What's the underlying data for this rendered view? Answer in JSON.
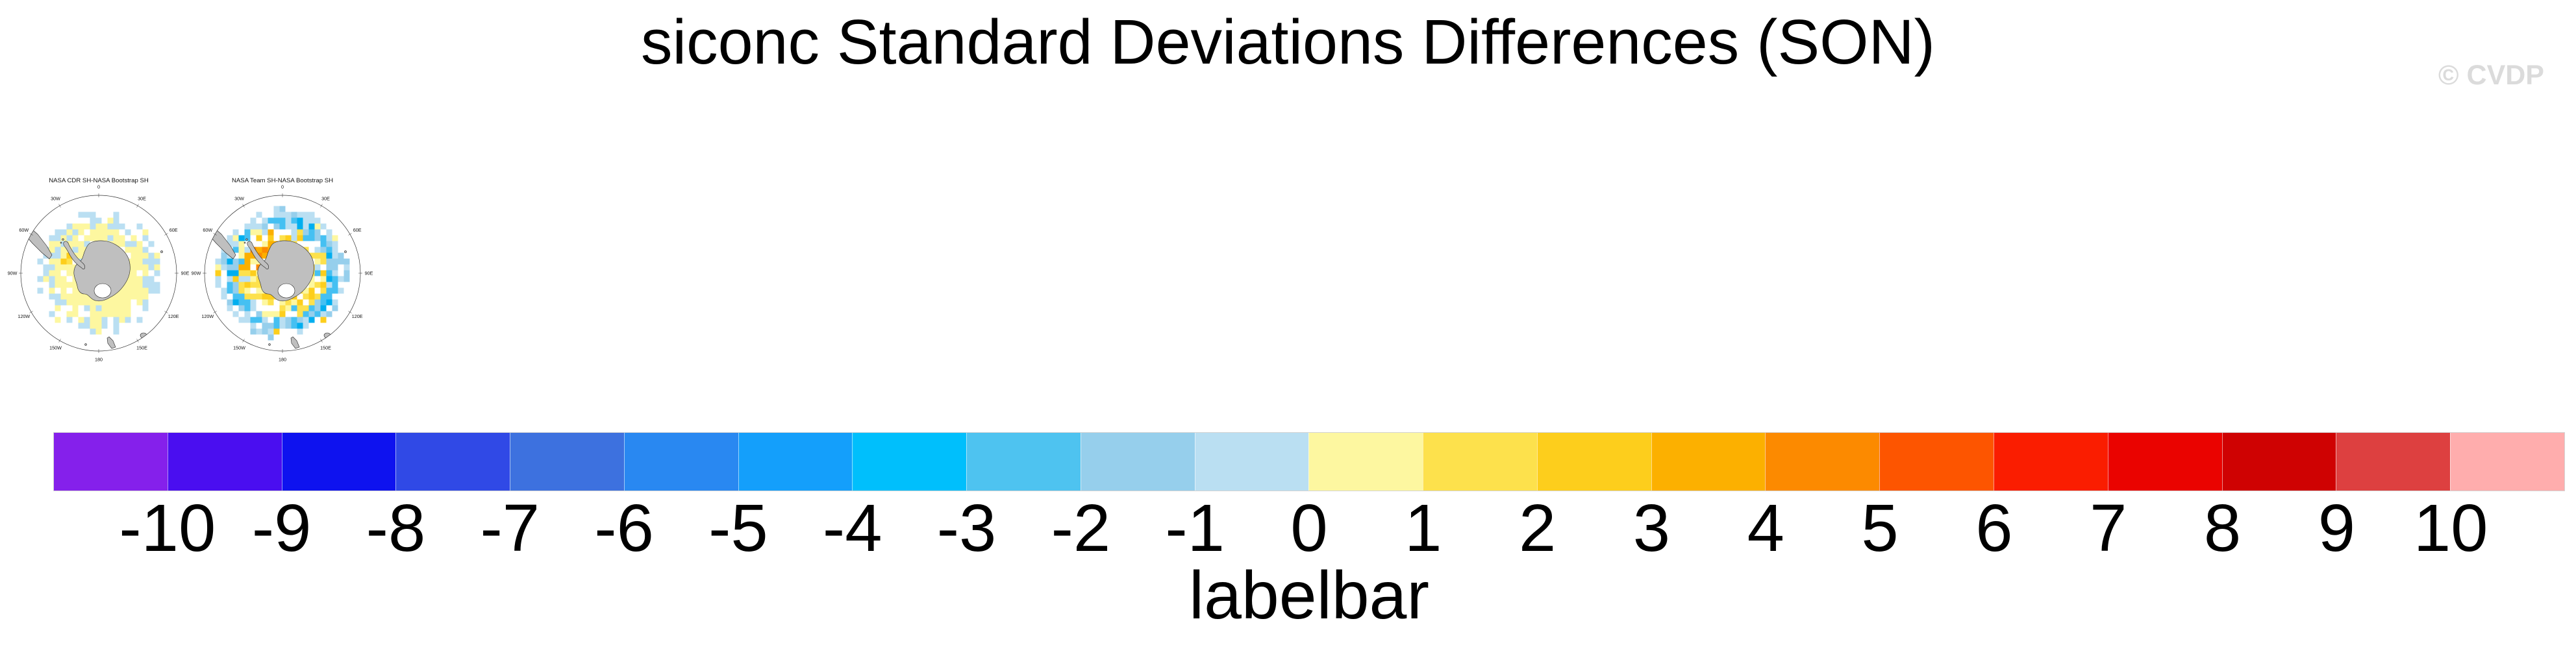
{
  "header": {
    "title": "siconc Standard Deviations Differences (SON)",
    "watermark": "© CVDP"
  },
  "maps": {
    "lon_labels": [
      "0",
      "30E",
      "60E",
      "90E",
      "120E",
      "150E",
      "180",
      "150W",
      "120W",
      "90W",
      "60W",
      "30W"
    ],
    "palette": {
      "paleYellow": "#FDF7A0",
      "yellow": "#FDE14C",
      "gold": "#FDCE1C",
      "amber": "#FCB000",
      "orange": "#FC8A00",
      "lightBlue": "#BADFF2",
      "sky": "#96CFEC",
      "azure": "#45C0F2",
      "deep": "#00AEEF"
    },
    "panels": [
      {
        "title": "NASA CDR SH-NASA Bootstrap SH",
        "seed": 7,
        "zones": [
          {
            "r0": 0.24,
            "r1": 0.56,
            "weights": {
              "paleYellow": 0.88,
              "lightBlue": 0.05
            }
          },
          {
            "r0": 0.56,
            "r1": 0.68,
            "weights": {
              "paleYellow": 0.55,
              "lightBlue": 0.33
            }
          },
          {
            "r0": 0.68,
            "r1": 0.8,
            "weights": {
              "lightBlue": 0.42,
              "paleYellow": 0.1
            }
          }
        ],
        "hotspot": null,
        "accents": [
          {
            "i": -5,
            "j": -3,
            "color": "gold"
          },
          {
            "i": -6,
            "j": -2,
            "color": "gold"
          },
          {
            "i": -5,
            "j": -2,
            "color": "yellow"
          }
        ]
      },
      {
        "title": "NASA Team SH-NASA Bootstrap SH",
        "seed": 13,
        "zones": [
          {
            "r0": 0.24,
            "r1": 0.44,
            "weights": {
              "yellow": 0.42,
              "gold": 0.22,
              "paleYellow": 0.22
            }
          },
          {
            "r0": 0.44,
            "r1": 0.58,
            "weights": {
              "yellow": 0.25,
              "gold": 0.15,
              "paleYellow": 0.15,
              "lightBlue": 0.12,
              "azure": 0.08
            }
          },
          {
            "r0": 0.58,
            "r1": 0.72,
            "weights": {
              "azure": 0.3,
              "deep": 0.12,
              "sky": 0.22,
              "lightBlue": 0.22,
              "paleYellow": 0.05,
              "gold": 0.04
            }
          },
          {
            "r0": 0.72,
            "r1": 0.84,
            "weights": {
              "lightBlue": 0.4,
              "sky": 0.12,
              "gold": 0.05,
              "paleYellow": 0.05
            }
          }
        ],
        "hotspot": {
          "r0": 0.3,
          "r1": 0.55,
          "quadrant": "NW",
          "prob": 0.55,
          "weights": {
            "amber": 0.5,
            "orange": 0.3,
            "gold": 0.2
          }
        },
        "accents": [
          {
            "i": -3,
            "j": -4,
            "color": "orange"
          },
          {
            "i": -4,
            "j": -3,
            "color": "orange"
          },
          {
            "i": -2,
            "j": -4,
            "color": "amber"
          },
          {
            "i": -3,
            "j": -3,
            "color": "amber"
          }
        ]
      }
    ]
  },
  "chart_data": {
    "type": "heatmap",
    "title": "siconc Standard Deviations Differences (SON)",
    "variable": "siconc",
    "season": "SON",
    "panels": [
      {
        "title": "NASA CDR SH-NASA Bootstrap SH",
        "projection": "south polar stereographic",
        "summary": "Mostly pale-yellow cells (0 to +1) surrounding Antarctica with a fringe of light-blue cells (-1 to 0) at the outer sea-ice edge; two small gold cells (+2 to +3) near the Antarctic Peninsula."
      },
      {
        "title": "NASA Team SH-NASA Bootstrap SH",
        "projection": "south polar stereographic",
        "summary": "Yellow-to-orange cells (+1 to +5) near the coast, strongest northwest of the Peninsula, ringed by blue cells (-1 to -5) along the sea-ice edge with a light-blue outer fringe."
      }
    ],
    "colorbar": {
      "label": "labelbar",
      "tick_labels": [
        "-10",
        "-9",
        "-8",
        "-7",
        "-6",
        "-5",
        "-4",
        "-3",
        "-2",
        "-1",
        "0",
        "1",
        "2",
        "3",
        "4",
        "5",
        "6",
        "7",
        "8",
        "9",
        "10"
      ],
      "tick_values": [
        -10,
        -9,
        -8,
        -7,
        -6,
        -5,
        -4,
        -3,
        -2,
        -1,
        0,
        1,
        2,
        3,
        4,
        5,
        6,
        7,
        8,
        9,
        10
      ],
      "colors": [
        "#8520EB",
        "#4A0EF0",
        "#0E12EF",
        "#3049E6",
        "#3D71DF",
        "#2988F1",
        "#149FFB",
        "#00BFFC",
        "#4EC3F0",
        "#96CFEC",
        "#BADFF2",
        "#FDF7A0",
        "#FDE14C",
        "#FDCE1C",
        "#FCB000",
        "#FC8A00",
        "#FD5500",
        "#FA1D00",
        "#EA0300",
        "#CF0202",
        "#DD4040",
        "#FFADAD"
      ]
    }
  }
}
